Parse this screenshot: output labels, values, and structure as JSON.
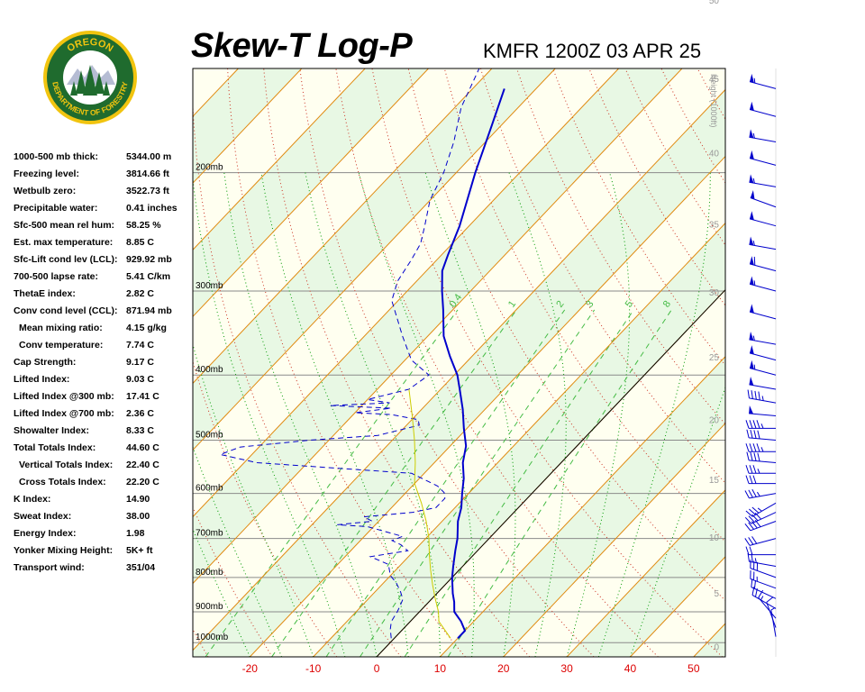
{
  "header": {
    "title": "Skew-T Log-P",
    "station": "KMFR 1200Z 03 APR 25",
    "logo": {
      "top_text": "OREGON",
      "bottom_text": "DEPARTMENT OF FORESTRY",
      "icon": "forestry-seal-icon"
    }
  },
  "indices": [
    {
      "label": "1000-500 mb thick:",
      "value": "5344.00 m"
    },
    {
      "label": "Freezing level:",
      "value": "3814.66 ft"
    },
    {
      "label": "Wetbulb zero:",
      "value": "3522.73 ft"
    },
    {
      "label": "Precipitable water:",
      "value": "0.41 inches"
    },
    {
      "label": "Sfc-500 mean rel hum:",
      "value": "58.25 %"
    },
    {
      "label": "Est. max temperature:",
      "value": "8.85 C"
    },
    {
      "label": "Sfc-Lift cond lev (LCL):",
      "value": "929.92 mb"
    },
    {
      "label": "700-500 lapse rate:",
      "value": "5.41 C/km"
    },
    {
      "label": "ThetaE index:",
      "value": "2.82 C"
    },
    {
      "label": "Conv cond level (CCL):",
      "value": "871.94 mb"
    },
    {
      "label": "Mean mixing ratio:",
      "value": "4.15 g/kg",
      "indent": true
    },
    {
      "label": "Conv temperature:",
      "value": "7.74 C",
      "indent": true
    },
    {
      "label": "Cap Strength:",
      "value": "9.17 C"
    },
    {
      "label": "Lifted Index:",
      "value": "9.03 C"
    },
    {
      "label": "Lifted Index @300 mb:",
      "value": "17.41 C"
    },
    {
      "label": "Lifted Index @700 mb:",
      "value": "2.36 C"
    },
    {
      "label": "Showalter Index:",
      "value": "8.33 C"
    },
    {
      "label": "Total Totals Index:",
      "value": "44.60 C"
    },
    {
      "label": "Vertical Totals Index:",
      "value": "22.40 C",
      "indent": true
    },
    {
      "label": "Cross Totals Index:",
      "value": "22.20 C",
      "indent": true
    },
    {
      "label": "K Index:",
      "value": "14.90"
    },
    {
      "label": "Sweat Index:",
      "value": "38.00"
    },
    {
      "label": "Energy Index:",
      "value": "1.98"
    },
    {
      "label": "Yonker Mixing Height:",
      "value": "5K+ ft"
    },
    {
      "label": "Transport wind:",
      "value": "351/04"
    }
  ],
  "chart_data": {
    "type": "line",
    "x_axis": {
      "ticks": [
        -20,
        -10,
        0,
        10,
        20,
        30,
        40,
        50
      ],
      "range": [
        -29,
        55
      ],
      "tick_color": "#dd0000"
    },
    "pressure_labels": [
      "200mb",
      "300mb",
      "400mb",
      "500mb",
      "600mb",
      "700mb",
      "800mb",
      "900mb",
      "1000mb"
    ],
    "pressure_levels": [
      200,
      300,
      400,
      500,
      600,
      700,
      800,
      900,
      1000
    ],
    "pressure_range": [
      1050,
      140
    ],
    "height_axis": {
      "title": "Height (1000ft)",
      "ticks": [
        "0",
        "5",
        "10",
        "15",
        "20",
        "25",
        "30",
        "35",
        "40",
        "45",
        "50"
      ],
      "values": [
        0,
        5,
        10,
        15,
        20,
        25,
        30,
        35,
        40,
        45,
        50
      ]
    },
    "mixing_ratio_labels": [
      "0.4",
      "1",
      "2",
      "3",
      "5",
      "8"
    ],
    "mixing_ratios": [
      0.4,
      1,
      2,
      3,
      5,
      8
    ],
    "series": [
      {
        "kind": "temperature",
        "color": "#0000cc",
        "points": [
          [
            985,
            10
          ],
          [
            960,
            10
          ],
          [
            930,
            8
          ],
          [
            900,
            5.5
          ],
          [
            870,
            4
          ],
          [
            845,
            2.5
          ],
          [
            800,
            0
          ],
          [
            770,
            -1.5
          ],
          [
            730,
            -3.5
          ],
          [
            700,
            -5
          ],
          [
            660,
            -7.5
          ],
          [
            630,
            -9
          ],
          [
            600,
            -11
          ],
          [
            570,
            -13
          ],
          [
            540,
            -15.5
          ],
          [
            510,
            -17.5
          ],
          [
            480,
            -20.5
          ],
          [
            450,
            -23.5
          ],
          [
            420,
            -27
          ],
          [
            400,
            -29.5
          ],
          [
            375,
            -33.5
          ],
          [
            350,
            -37.5
          ],
          [
            320,
            -41.5
          ],
          [
            300,
            -44.5
          ],
          [
            280,
            -47.5
          ],
          [
            265,
            -49
          ],
          [
            240,
            -51.5
          ],
          [
            200,
            -57
          ],
          [
            170,
            -61.5
          ],
          [
            150,
            -65
          ]
        ]
      },
      {
        "kind": "dewpoint",
        "color": "#0000cc",
        "points": [
          [
            985,
            -0.5
          ],
          [
            955,
            -2
          ],
          [
            930,
            -3
          ],
          [
            900,
            -3.5
          ],
          [
            880,
            -4
          ],
          [
            862,
            -4.5
          ],
          [
            840,
            -6
          ],
          [
            815,
            -8
          ],
          [
            795,
            -10
          ],
          [
            780,
            -11
          ],
          [
            765,
            -12
          ],
          [
            755,
            -14
          ],
          [
            745,
            -16
          ],
          [
            730,
            -11
          ],
          [
            715,
            -13
          ],
          [
            705,
            -15
          ],
          [
            695,
            -14
          ],
          [
            685,
            -17
          ],
          [
            672,
            -21
          ],
          [
            668,
            -26
          ],
          [
            660,
            -21
          ],
          [
            650,
            -23
          ],
          [
            640,
            -16
          ],
          [
            630,
            -13
          ],
          [
            610,
            -13
          ],
          [
            598,
            -14
          ],
          [
            585,
            -16
          ],
          [
            560,
            -22
          ],
          [
            550,
            -35
          ],
          [
            540,
            -48
          ],
          [
            525,
            -55
          ],
          [
            512,
            -53
          ],
          [
            500,
            -43
          ],
          [
            492,
            -33
          ],
          [
            485,
            -31
          ],
          [
            475,
            -28
          ],
          [
            466,
            -29
          ],
          [
            458,
            -34
          ],
          [
            455,
            -40
          ],
          [
            448,
            -35
          ],
          [
            444,
            -45
          ],
          [
            440,
            -36
          ],
          [
            435,
            -40
          ],
          [
            420,
            -35
          ],
          [
            400,
            -34
          ],
          [
            380,
            -39
          ],
          [
            350,
            -44
          ],
          [
            310,
            -51
          ],
          [
            290,
            -53
          ],
          [
            270,
            -54
          ],
          [
            255,
            -55
          ],
          [
            240,
            -57
          ],
          [
            220,
            -60
          ],
          [
            200,
            -62
          ],
          [
            180,
            -65
          ],
          [
            160,
            -69
          ],
          [
            140,
            -72
          ]
        ]
      },
      {
        "kind": "parcel",
        "color": "#cccc00",
        "points": [
          [
            985,
            8.85
          ],
          [
            930,
            4.5
          ],
          [
            900,
            3
          ],
          [
            860,
            0.5
          ],
          [
            820,
            -2
          ],
          [
            780,
            -4.5
          ],
          [
            740,
            -7
          ],
          [
            700,
            -9.5
          ],
          [
            660,
            -12.5
          ],
          [
            620,
            -16
          ],
          [
            580,
            -20
          ],
          [
            540,
            -23
          ],
          [
            500,
            -26.5
          ],
          [
            460,
            -30.5
          ],
          [
            420,
            -35
          ]
        ]
      }
    ],
    "wind_barbs": [
      {
        "p": 980,
        "dir": 350,
        "spd": 5
      },
      {
        "p": 950,
        "dir": 340,
        "spd": 10
      },
      {
        "p": 920,
        "dir": 320,
        "spd": 15
      },
      {
        "p": 890,
        "dir": 300,
        "spd": 20
      },
      {
        "p": 860,
        "dir": 295,
        "spd": 20
      },
      {
        "p": 830,
        "dir": 290,
        "spd": 25
      },
      {
        "p": 800,
        "dir": 290,
        "spd": 30
      },
      {
        "p": 770,
        "dir": 280,
        "spd": 25
      },
      {
        "p": 740,
        "dir": 270,
        "spd": 20
      },
      {
        "p": 700,
        "dir": 255,
        "spd": 30
      },
      {
        "p": 660,
        "dir": 250,
        "spd": 40
      },
      {
        "p": 640,
        "dir": 245,
        "spd": 40
      },
      {
        "p": 620,
        "dir": 240,
        "spd": 35
      },
      {
        "p": 600,
        "dir": 260,
        "spd": 35
      },
      {
        "p": 580,
        "dir": 270,
        "spd": 30
      },
      {
        "p": 560,
        "dir": 270,
        "spd": 35
      },
      {
        "p": 540,
        "dir": 275,
        "spd": 40
      },
      {
        "p": 520,
        "dir": 270,
        "spd": 45
      },
      {
        "p": 500,
        "dir": 275,
        "spd": 40
      },
      {
        "p": 480,
        "dir": 270,
        "spd": 45
      },
      {
        "p": 460,
        "dir": 275,
        "spd": 50
      },
      {
        "p": 440,
        "dir": 280,
        "spd": 45
      },
      {
        "p": 420,
        "dir": 280,
        "spd": 50
      },
      {
        "p": 400,
        "dir": 285,
        "spd": 55
      },
      {
        "p": 380,
        "dir": 285,
        "spd": 50
      },
      {
        "p": 360,
        "dir": 280,
        "spd": 55
      },
      {
        "p": 330,
        "dir": 285,
        "spd": 50
      },
      {
        "p": 300,
        "dir": 285,
        "spd": 55
      },
      {
        "p": 280,
        "dir": 285,
        "spd": 60
      },
      {
        "p": 260,
        "dir": 280,
        "spd": 55
      },
      {
        "p": 240,
        "dir": 285,
        "spd": 50
      },
      {
        "p": 225,
        "dir": 290,
        "spd": 50
      },
      {
        "p": 210,
        "dir": 280,
        "spd": 55
      },
      {
        "p": 195,
        "dir": 285,
        "spd": 50
      },
      {
        "p": 180,
        "dir": 280,
        "spd": 55
      },
      {
        "p": 165,
        "dir": 285,
        "spd": 50
      },
      {
        "p": 150,
        "dir": 285,
        "spd": 55
      }
    ]
  }
}
